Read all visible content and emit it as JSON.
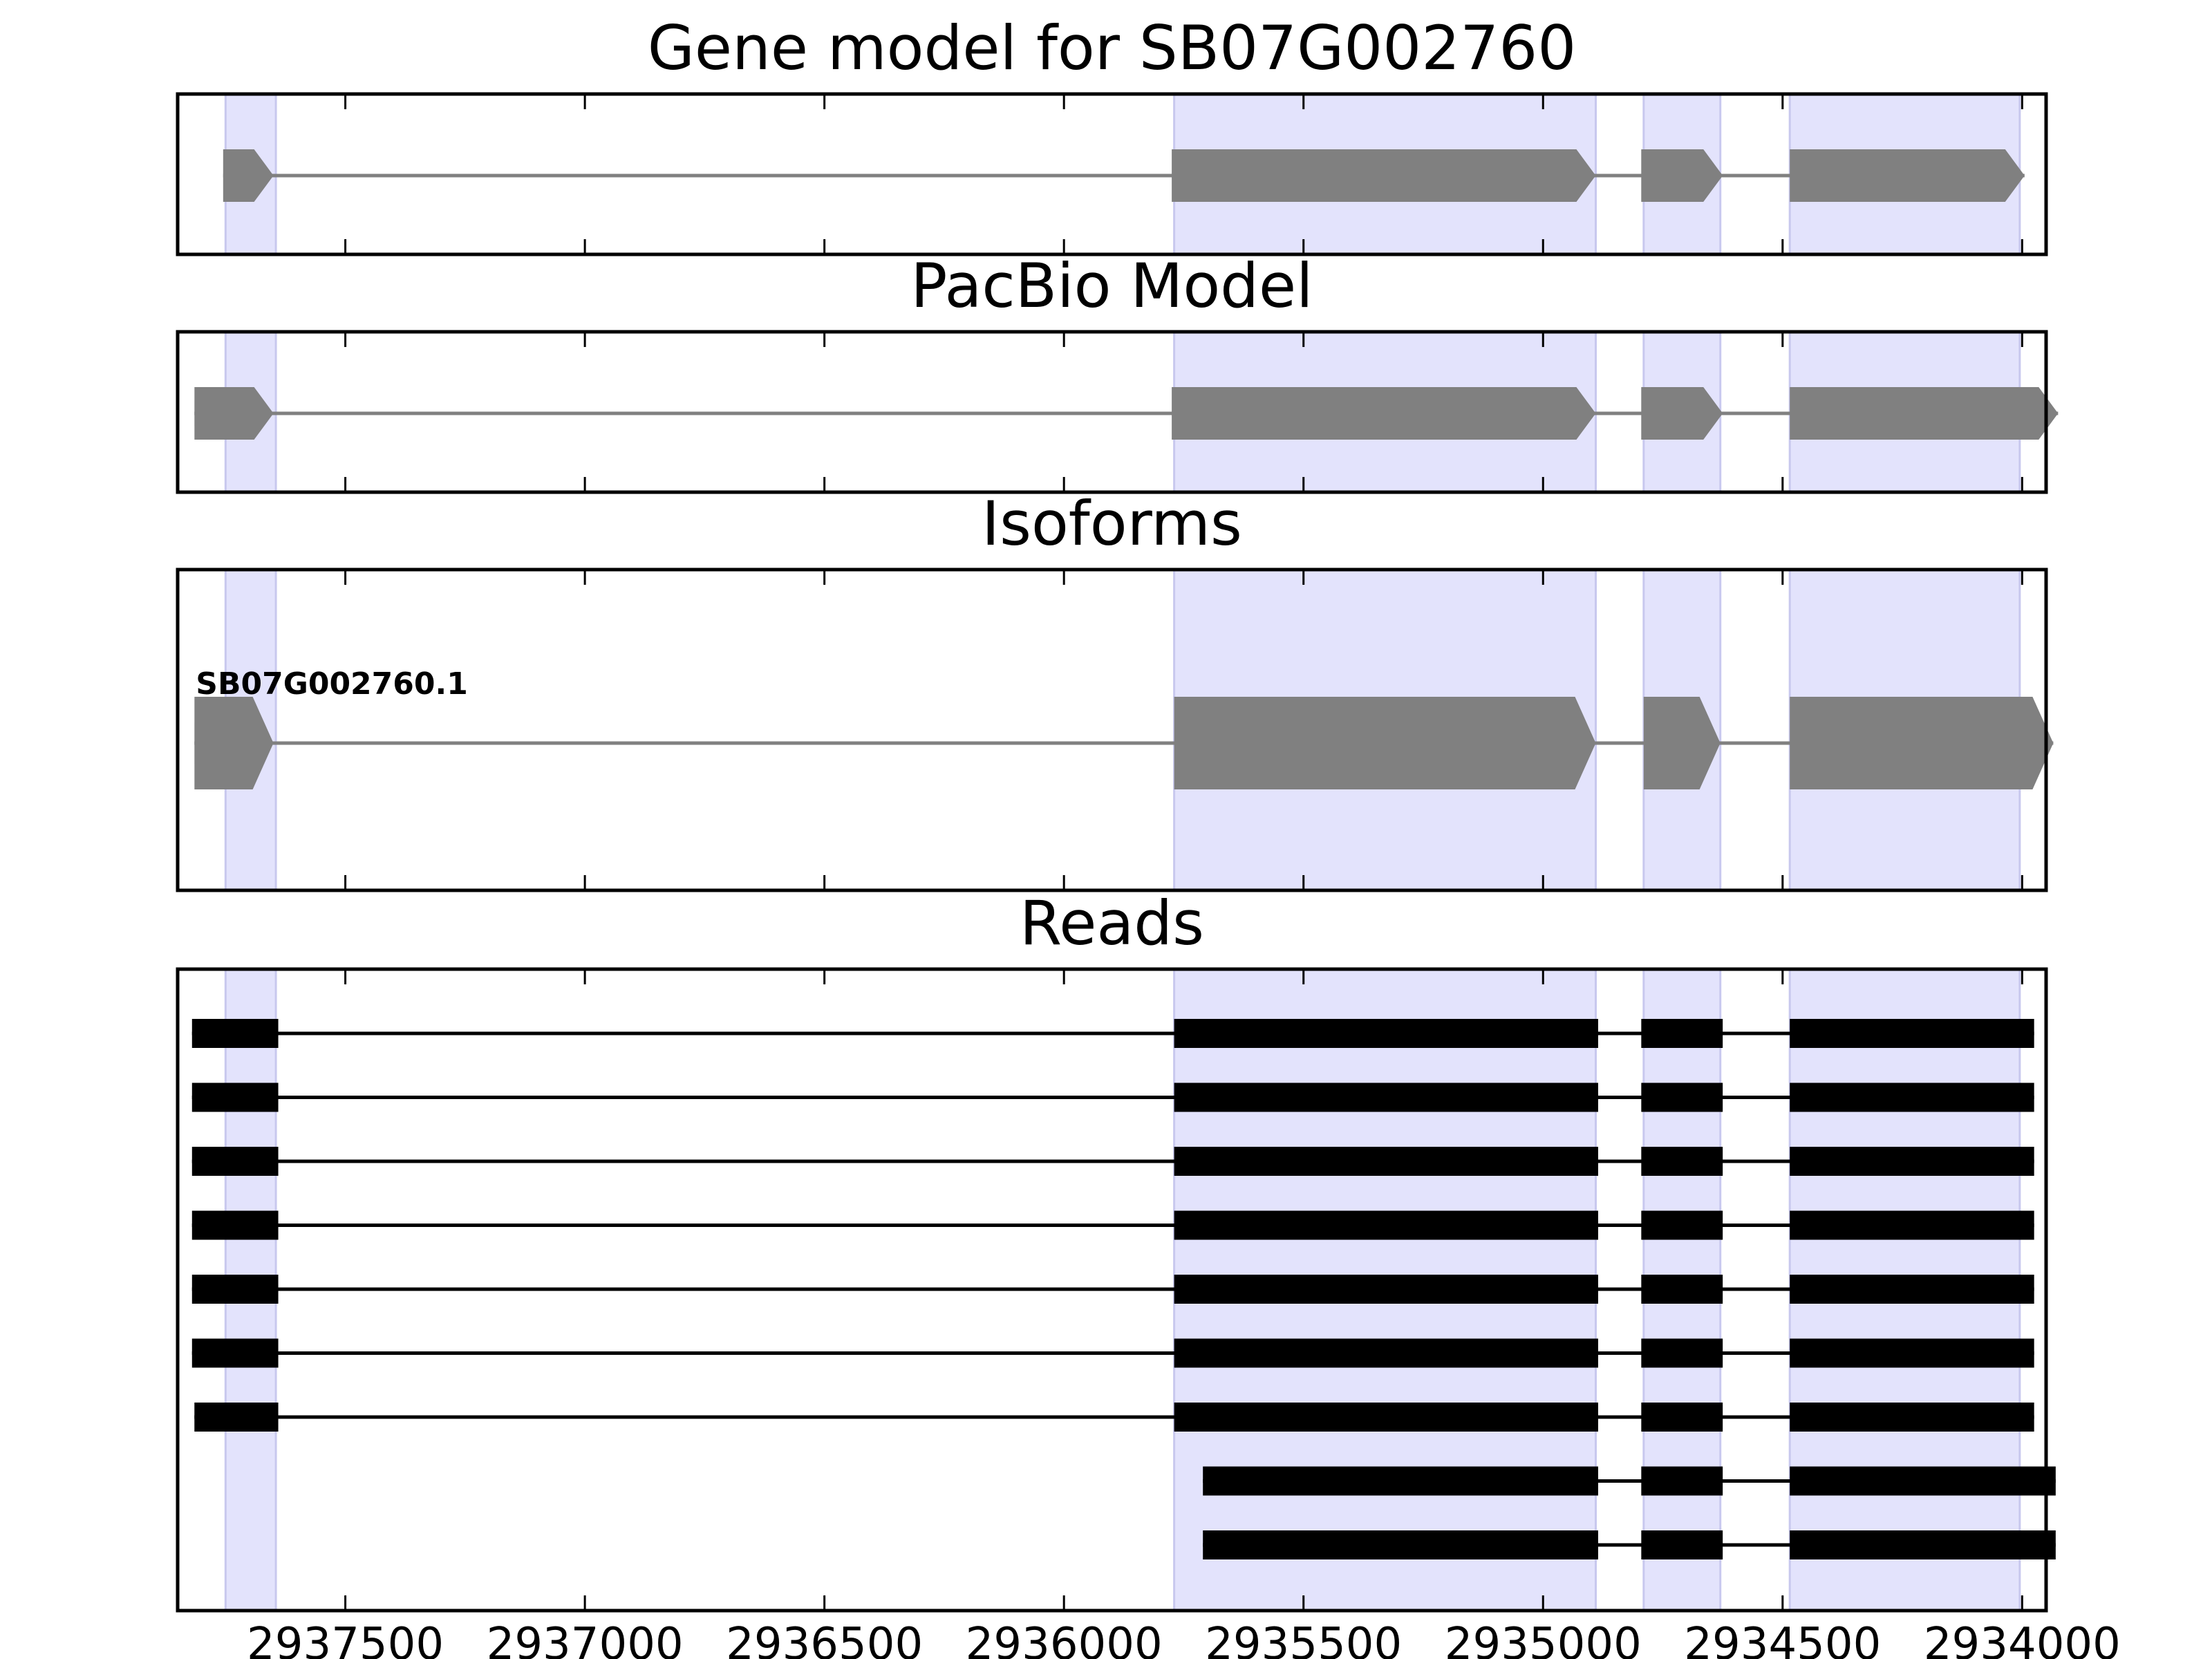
{
  "chart_data": {
    "type": "gene-model",
    "x_reversed": true,
    "xlim": [
      2937850,
      2933950
    ],
    "x_ticks": [
      2937500,
      2937000,
      2936500,
      2936000,
      2935500,
      2935000,
      2934500,
      2934000
    ],
    "x_tick_labels": [
      "2937500",
      "2937000",
      "2936500",
      "2936000",
      "2935500",
      "2935000",
      "2934500",
      "2934000"
    ],
    "highlight_color": "#e3e3fc",
    "highlight_edge_color": "#c8c8ee",
    "highlight_regions": [
      [
        2937750,
        2937645
      ],
      [
        2935770,
        2934890
      ],
      [
        2934790,
        2934630
      ],
      [
        2934485,
        2934005
      ]
    ],
    "panels": [
      {
        "title": "Gene model for SB07G002760",
        "style": "gene",
        "color": "#808080",
        "features": [
          {
            "exons": [
              [
                2937755,
                2937650
              ],
              [
                2935775,
                2934890
              ],
              [
                2934795,
                2934625
              ],
              [
                2934485,
                2933995
              ]
            ]
          }
        ]
      },
      {
        "title": "PacBio Model",
        "style": "gene",
        "color": "#808080",
        "features": [
          {
            "exons": [
              [
                2937815,
                2937650
              ],
              [
                2935775,
                2934890
              ],
              [
                2934795,
                2934625
              ],
              [
                2934485,
                2933925
              ]
            ]
          }
        ]
      },
      {
        "title": "Isoforms",
        "style": "isoform",
        "color": "#808080",
        "features": [
          {
            "name": "SB07G002760.1",
            "exons": [
              [
                2937815,
                2937650
              ],
              [
                2935770,
                2934890
              ],
              [
                2934790,
                2934630
              ],
              [
                2934485,
                2933935
              ]
            ]
          }
        ]
      },
      {
        "title": "Reads",
        "style": "read",
        "color": "#000000",
        "features": [
          {
            "exons": [
              [
                2937820,
                2937640
              ],
              [
                2935770,
                2934885
              ],
              [
                2934795,
                2934625
              ],
              [
                2934485,
                2933975
              ]
            ]
          },
          {
            "exons": [
              [
                2937820,
                2937640
              ],
              [
                2935770,
                2934885
              ],
              [
                2934795,
                2934625
              ],
              [
                2934485,
                2933975
              ]
            ]
          },
          {
            "exons": [
              [
                2937820,
                2937640
              ],
              [
                2935770,
                2934885
              ],
              [
                2934795,
                2934625
              ],
              [
                2934485,
                2933975
              ]
            ]
          },
          {
            "exons": [
              [
                2937820,
                2937640
              ],
              [
                2935770,
                2934885
              ],
              [
                2934795,
                2934625
              ],
              [
                2934485,
                2933975
              ]
            ]
          },
          {
            "exons": [
              [
                2937820,
                2937640
              ],
              [
                2935770,
                2934885
              ],
              [
                2934795,
                2934625
              ],
              [
                2934485,
                2933975
              ]
            ]
          },
          {
            "exons": [
              [
                2937820,
                2937640
              ],
              [
                2935770,
                2934885
              ],
              [
                2934795,
                2934625
              ],
              [
                2934485,
                2933975
              ]
            ]
          },
          {
            "exons": [
              [
                2937815,
                2937640
              ],
              [
                2935770,
                2934885
              ],
              [
                2934795,
                2934625
              ],
              [
                2934485,
                2933975
              ]
            ]
          },
          {
            "exons": [
              [
                2935710,
                2934885
              ],
              [
                2934795,
                2934625
              ],
              [
                2934485,
                2933930
              ]
            ]
          },
          {
            "exons": [
              [
                2935710,
                2934885
              ],
              [
                2934795,
                2934625
              ],
              [
                2934485,
                2933930
              ]
            ]
          }
        ]
      }
    ]
  }
}
